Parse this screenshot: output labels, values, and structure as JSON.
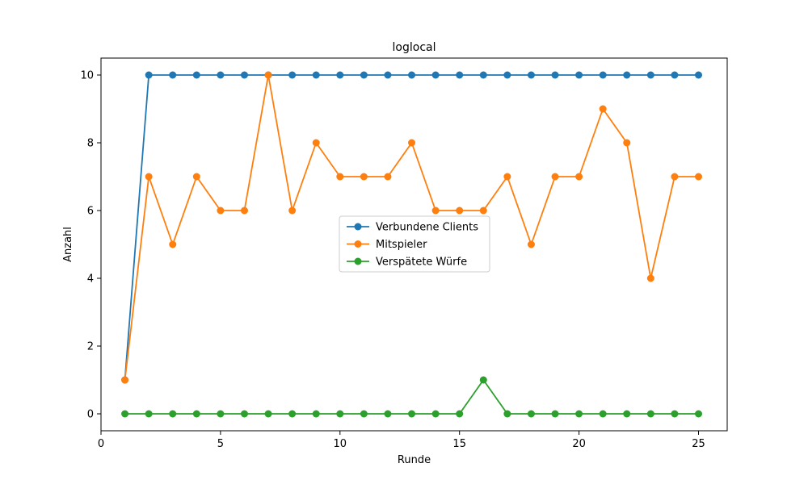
{
  "chart_data": {
    "type": "line",
    "title": "loglocal",
    "xlabel": "Runde",
    "ylabel": "Anzahl",
    "xlim": [
      0,
      26.2
    ],
    "ylim": [
      -0.5,
      10.5
    ],
    "xticks": [
      0,
      5,
      10,
      15,
      20,
      25
    ],
    "yticks": [
      0,
      2,
      4,
      6,
      8,
      10
    ],
    "grid": false,
    "legend_position": "center",
    "x": [
      1,
      2,
      3,
      4,
      5,
      6,
      7,
      8,
      9,
      10,
      11,
      12,
      13,
      14,
      15,
      16,
      17,
      18,
      19,
      20,
      21,
      22,
      23,
      24,
      25
    ],
    "series": [
      {
        "name": "Verbundene Clients",
        "color": "#1f77b4",
        "values": [
          1,
          10,
          10,
          10,
          10,
          10,
          10,
          10,
          10,
          10,
          10,
          10,
          10,
          10,
          10,
          10,
          10,
          10,
          10,
          10,
          10,
          10,
          10,
          10,
          10
        ]
      },
      {
        "name": "Mitspieler",
        "color": "#ff7f0e",
        "values": [
          1,
          7,
          5,
          7,
          6,
          6,
          10,
          6,
          8,
          7,
          7,
          7,
          8,
          6,
          6,
          6,
          7,
          5,
          7,
          7,
          9,
          8,
          4,
          7,
          7
        ]
      },
      {
        "name": "Verspätete Würfe",
        "color": "#2ca02c",
        "values": [
          0,
          0,
          0,
          0,
          0,
          0,
          0,
          0,
          0,
          0,
          0,
          0,
          0,
          0,
          0,
          1,
          0,
          0,
          0,
          0,
          0,
          0,
          0,
          0,
          0
        ]
      }
    ]
  }
}
